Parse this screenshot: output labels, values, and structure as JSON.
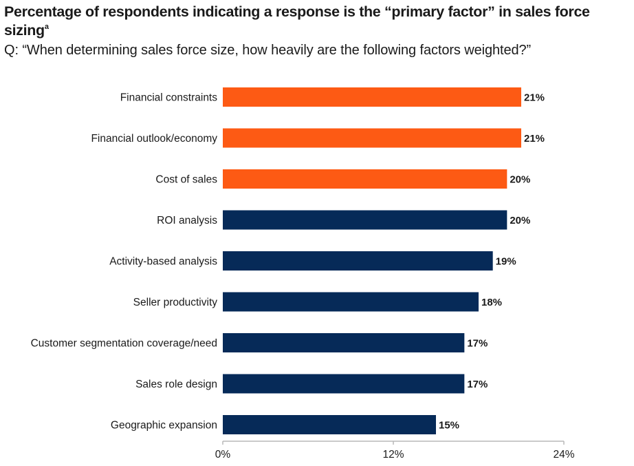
{
  "header": {
    "title": "Percentage of respondents indicating a response is the “primary factor” in sales force sizing",
    "title_footnote": "a",
    "subtitle": "Q: “When determining sales force size, how heavily are the following factors weighted?”"
  },
  "colors": {
    "highlight": "#fd5a14",
    "base": "#062a58",
    "axis": "#b8b8b8",
    "text": "#1a1a1a"
  },
  "chart_data": {
    "type": "bar",
    "orientation": "horizontal",
    "categories": [
      "Financial constraints",
      "Financial outlook/economy",
      "Cost of sales",
      "ROI analysis",
      "Activity-based analysis",
      "Seller productivity",
      "Customer segmentation coverage/need",
      "Sales role design",
      "Geographic expansion"
    ],
    "values": [
      21,
      21,
      20,
      20,
      19,
      18,
      17,
      17,
      15
    ],
    "value_labels": [
      "21%",
      "21%",
      "20%",
      "20%",
      "19%",
      "18%",
      "17%",
      "17%",
      "15%"
    ],
    "highlighted": [
      true,
      true,
      true,
      false,
      false,
      false,
      false,
      false,
      false
    ],
    "xlim": [
      0,
      24
    ],
    "xticks": [
      0,
      12,
      24
    ],
    "xtick_labels": [
      "0%",
      "12%",
      "24%"
    ],
    "grid": false
  }
}
